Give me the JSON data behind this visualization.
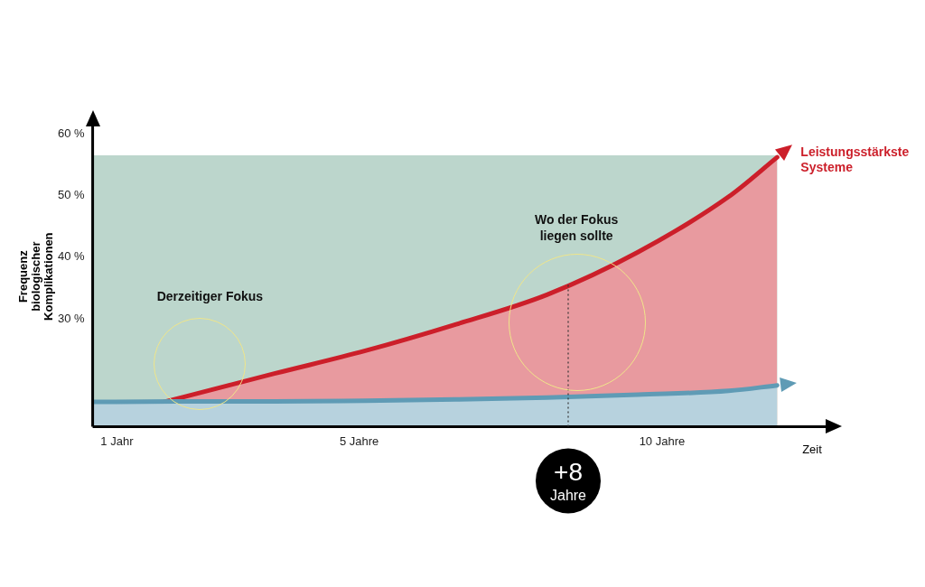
{
  "chart_data": {
    "type": "area",
    "ylabel": "Frequenz biologischer Komplikationen",
    "xlabel": "Zeit",
    "x": [
      0.6,
      2.1,
      3.6,
      5.1,
      6.6,
      8.1,
      9.6,
      11.1,
      11.9
    ],
    "series": [
      {
        "name": "Leistungsstärkste Systeme",
        "color": "#cc1f2a",
        "values": [
          13.6,
          17.3,
          21.1,
          24.8,
          29.1,
          33.9,
          40.8,
          49.8,
          56.2
        ]
      },
      {
        "color": "#5f9bb5",
        "values": [
          16.5,
          16.6,
          16.6,
          16.7,
          16.9,
          17.2,
          17.7,
          18.3,
          19.2
        ]
      }
    ],
    "xlim": [
      0.6,
      12.7
    ],
    "xticks": [
      {
        "value": 1,
        "label": "1 Jahr"
      },
      {
        "value": 5,
        "label": "5 Jahre"
      },
      {
        "value": 10,
        "label": "10 Jahre"
      }
    ],
    "ylim": [
      12.5,
      61.2
    ],
    "yticks": [
      {
        "value": 30,
        "label": "30 %"
      },
      {
        "value": 40,
        "label": "40 %"
      },
      {
        "value": 50,
        "label": "50 %"
      },
      {
        "value": 60,
        "label": "60 %"
      }
    ],
    "bands": [
      {
        "axis": "y",
        "from": 12.5,
        "to": 56.5,
        "color": "#bcd6cc"
      }
    ],
    "ref_lines": [
      {
        "axis": "x",
        "value": 8.45,
        "label": "+8 Jahre",
        "line_style": "dotted"
      }
    ],
    "annotations": [
      "Derzeitiger Fokus",
      "Wo der Fokus liegen sollte"
    ],
    "grid": false,
    "legend": "right"
  }
}
